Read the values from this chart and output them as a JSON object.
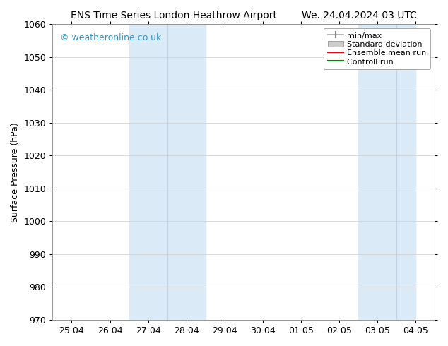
{
  "title_left": "ENS Time Series London Heathrow Airport",
  "title_right": "We. 24.04.2024 03 UTC",
  "ylabel": "Surface Pressure (hPa)",
  "ylim": [
    970,
    1060
  ],
  "yticks": [
    970,
    980,
    990,
    1000,
    1010,
    1020,
    1030,
    1040,
    1050,
    1060
  ],
  "xtick_labels": [
    "25.04",
    "26.04",
    "27.04",
    "28.04",
    "29.04",
    "30.04",
    "01.05",
    "02.05",
    "03.05",
    "04.05"
  ],
  "xtick_positions": [
    0,
    1,
    2,
    3,
    4,
    5,
    6,
    7,
    8,
    9
  ],
  "xlim": [
    -0.5,
    9.5
  ],
  "shaded_regions": [
    {
      "x_start": 1.5,
      "x_end": 2.5,
      "color": "#daeaf7"
    },
    {
      "x_start": 2.5,
      "x_end": 3.5,
      "color": "#daeaf7"
    },
    {
      "x_start": 7.5,
      "x_end": 8.5,
      "color": "#daeaf7"
    },
    {
      "x_start": 8.5,
      "x_end": 9.5,
      "color": "#daeaf7"
    }
  ],
  "divider_lines": [
    2.5,
    8.5
  ],
  "background_color": "#ffffff",
  "plot_bg_color": "#ffffff",
  "watermark_text": "© weatheronline.co.uk",
  "watermark_color": "#3399cc",
  "legend_labels": [
    "min/max",
    "Standard deviation",
    "Ensemble mean run",
    "Controll run"
  ],
  "legend_colors": [
    "#aaaaaa",
    "#cccccc",
    "#ff0000",
    "#008800"
  ],
  "title_fontsize": 10,
  "tick_label_fontsize": 9,
  "ylabel_fontsize": 9,
  "grid_color": "#cccccc",
  "grid_linewidth": 0.5,
  "border_color": "#888888",
  "shaded_color": "#daeaf7"
}
